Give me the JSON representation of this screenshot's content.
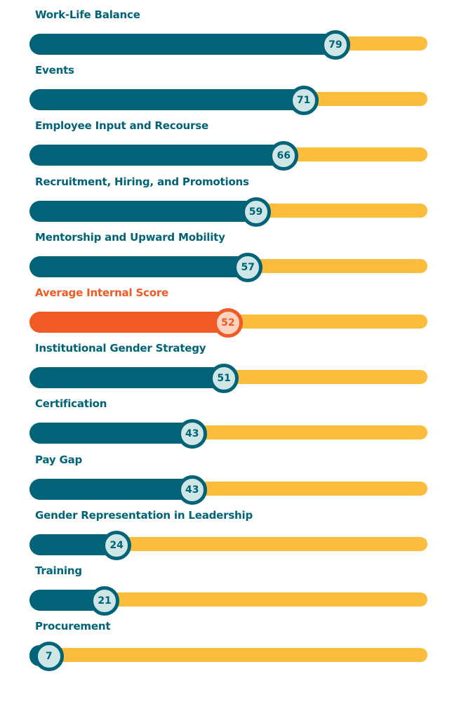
{
  "chart_data": {
    "type": "bar",
    "orientation": "horizontal",
    "xlim": [
      0,
      100
    ],
    "grid": false,
    "legend": "none",
    "categories": [
      "Work-Life Balance",
      "Events",
      "Employee Input and Recourse",
      "Recruitment, Hiring, and Promotions",
      "Mentorship and Upward Mobility",
      "Average Internal Score",
      "Institutional Gender Strategy",
      "Certification",
      "Pay Gap",
      "Gender Representation in Leadership",
      "Training",
      "Procurement"
    ],
    "values": [
      79,
      71,
      66,
      59,
      57,
      52,
      51,
      43,
      43,
      24,
      21,
      7
    ],
    "highlight_index": 5
  },
  "colors": {
    "bar": "#006378",
    "highlight": "#f05a24",
    "track": "#fdbd3c",
    "marker_fill": "#cfe6e6",
    "marker_fill_highlight": "#fbd3c0",
    "label": "#006378",
    "label_highlight": "#f05a24"
  }
}
